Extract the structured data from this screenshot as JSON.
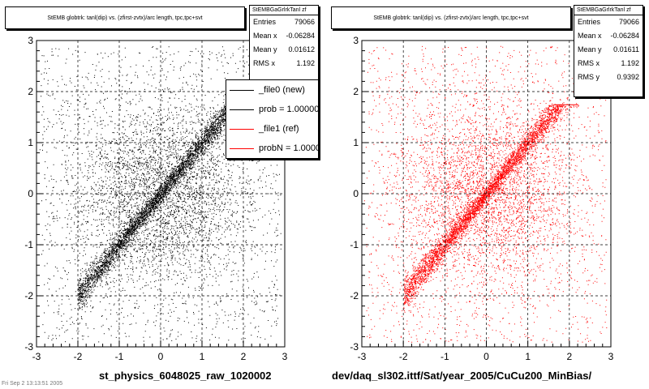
{
  "chart_data": [
    {
      "type": "scatter",
      "title": "StEMB globtrk: tanl(dip) vs. (zfirst-zvtx)/arc length, tpc,tpc+svt",
      "xlim": [
        -3,
        3
      ],
      "ylim": [
        -3,
        3
      ],
      "x_ticks": [
        "-3",
        "-2",
        "-1",
        "0",
        "1",
        "2",
        "3"
      ],
      "y_ticks": [
        "-3",
        "-2",
        "-1",
        "0",
        "1",
        "2",
        "3"
      ],
      "grid": true,
      "xlabel": "st_physics_6048025_raw_1020002",
      "series_color": "#000000",
      "stats": {
        "name": "StEMBGaGrlrkTanl zf",
        "entries_label": "Entries",
        "entries": "79066",
        "mean_x_label": "Mean x",
        "mean_x": "-0.06284",
        "mean_y_label": "Mean y",
        "mean_y": "0.01612",
        "rms_x_label": "RMS x",
        "rms_x": "1.192"
      },
      "legend": {
        "placement": "top-right",
        "entries": [
          {
            "label": "_file0 (new)",
            "color": "#000000"
          },
          {
            "label": "prob = 1.000000",
            "color": "#000000"
          },
          {
            "label": "_file1 (ref)",
            "color": "#ff0000"
          },
          {
            "label": "probN = 1.000000",
            "color": "#ff0000"
          }
        ]
      }
    },
    {
      "type": "scatter",
      "title": "StEMB globtrk: tanl(dip) vs. (zfirst-zvtx)/arc length, tpc,tpc+svt",
      "xlim": [
        -3,
        3
      ],
      "ylim": [
        -3,
        3
      ],
      "x_ticks": [
        "-3",
        "-2",
        "-1",
        "0",
        "1",
        "2",
        "3"
      ],
      "y_ticks": [
        "-3",
        "-2",
        "-1",
        "0",
        "1",
        "2",
        "3"
      ],
      "grid": true,
      "xlabel": "dev/daq_sl302.ittf/Sat/year_2005/CuCu200_MinBias/",
      "series_color": "#ff0000",
      "stats": {
        "name": "StEMBGaGrlrkTanl zf",
        "entries_label": "Entries",
        "entries": "79066",
        "mean_x_label": "Mean x",
        "mean_x": "-0.06284",
        "mean_y_label": "Mean y",
        "mean_y": "0.01611",
        "rms_x_label": "RMS x",
        "rms_x": "1.192",
        "rms_y_label": "RMS y",
        "rms_y": "0.9392"
      }
    }
  ],
  "footer_text": "Fri Sep 2 13:13:51 2005"
}
